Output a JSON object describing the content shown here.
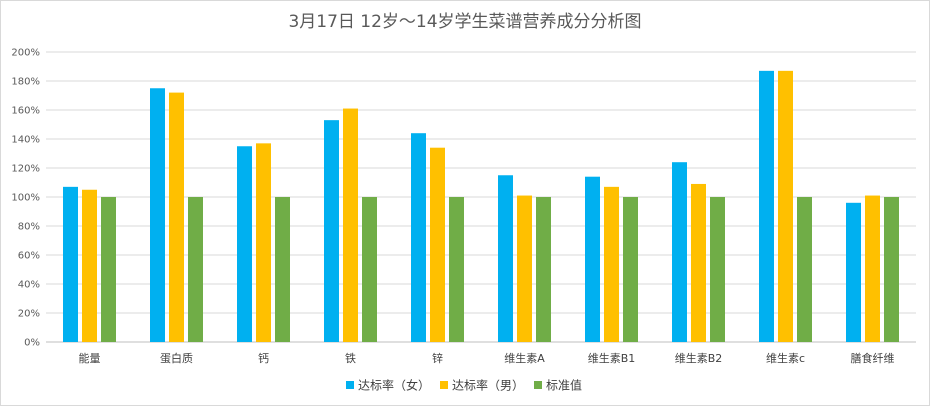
{
  "chart_data": {
    "type": "bar",
    "title": "3月17日 12岁～14岁学生菜谱营养成分分析图",
    "xlabel": "",
    "ylabel": "",
    "ylim": [
      0,
      2.0
    ],
    "y_ticks": [
      "0%",
      "20%",
      "40%",
      "60%",
      "80%",
      "100%",
      "120%",
      "140%",
      "160%",
      "180%",
      "200%"
    ],
    "grid": true,
    "legend_position": "bottom",
    "categories": [
      "能量",
      "蛋白质",
      "钙",
      "铁",
      "锌",
      "维生素A",
      "维生素B1",
      "维生素B2",
      "维生素c",
      "膳食纤维"
    ],
    "series": [
      {
        "name": "达标率（女）",
        "color": "#00b0f0",
        "values": [
          1.07,
          1.75,
          1.35,
          1.53,
          1.44,
          1.15,
          1.14,
          1.24,
          1.87,
          0.96
        ]
      },
      {
        "name": "达标率（男）",
        "color": "#ffc000",
        "values": [
          1.05,
          1.72,
          1.37,
          1.61,
          1.34,
          1.01,
          1.07,
          1.09,
          1.87,
          1.01
        ]
      },
      {
        "name": "标准值",
        "color": "#70ad47",
        "values": [
          1.0,
          1.0,
          1.0,
          1.0,
          1.0,
          1.0,
          1.0,
          1.0,
          1.0,
          1.0
        ]
      }
    ]
  }
}
